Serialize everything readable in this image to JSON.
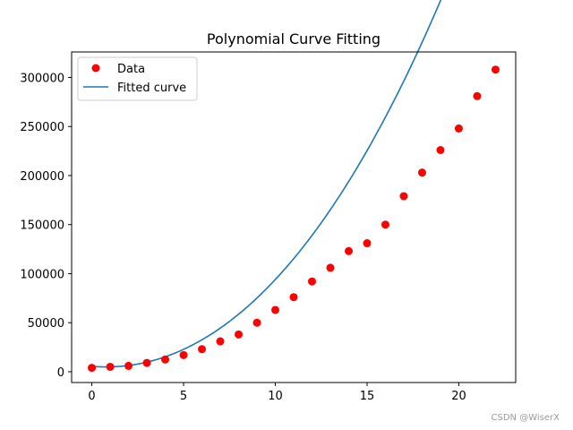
{
  "chart_data": {
    "type": "scatter",
    "title": "Polynomial Curve Fitting",
    "xlabel": "",
    "ylabel": "",
    "xlim": [
      -1.1,
      23.1
    ],
    "ylim": [
      -11000,
      326000
    ],
    "xticks": [
      0,
      5,
      10,
      15,
      20
    ],
    "yticks": [
      0,
      50000,
      100000,
      150000,
      200000,
      250000,
      300000
    ],
    "grid": false,
    "legend_position": "top-left",
    "series": [
      {
        "name": "Data",
        "kind": "scatter",
        "color": "#ff0000",
        "x": [
          0,
          1,
          2,
          3,
          4,
          5,
          6,
          7,
          8,
          9,
          10,
          11,
          12,
          13,
          14,
          15,
          16,
          17,
          18,
          19,
          20,
          21,
          22
        ],
        "y": [
          4000,
          5000,
          6000,
          9000,
          12500,
          17000,
          23000,
          31000,
          38000,
          50000,
          63000,
          76000,
          92000,
          106000,
          123000,
          131000,
          150000,
          179000,
          203000,
          226000,
          248000,
          281000,
          308000
        ]
      },
      {
        "name": "Fitted curve",
        "kind": "line",
        "color": "#1f77b4",
        "polynomial_coefficients": [
          5500,
          -1500,
          950,
          8.5
        ]
      }
    ]
  },
  "watermark": "CSDN @WiserX"
}
